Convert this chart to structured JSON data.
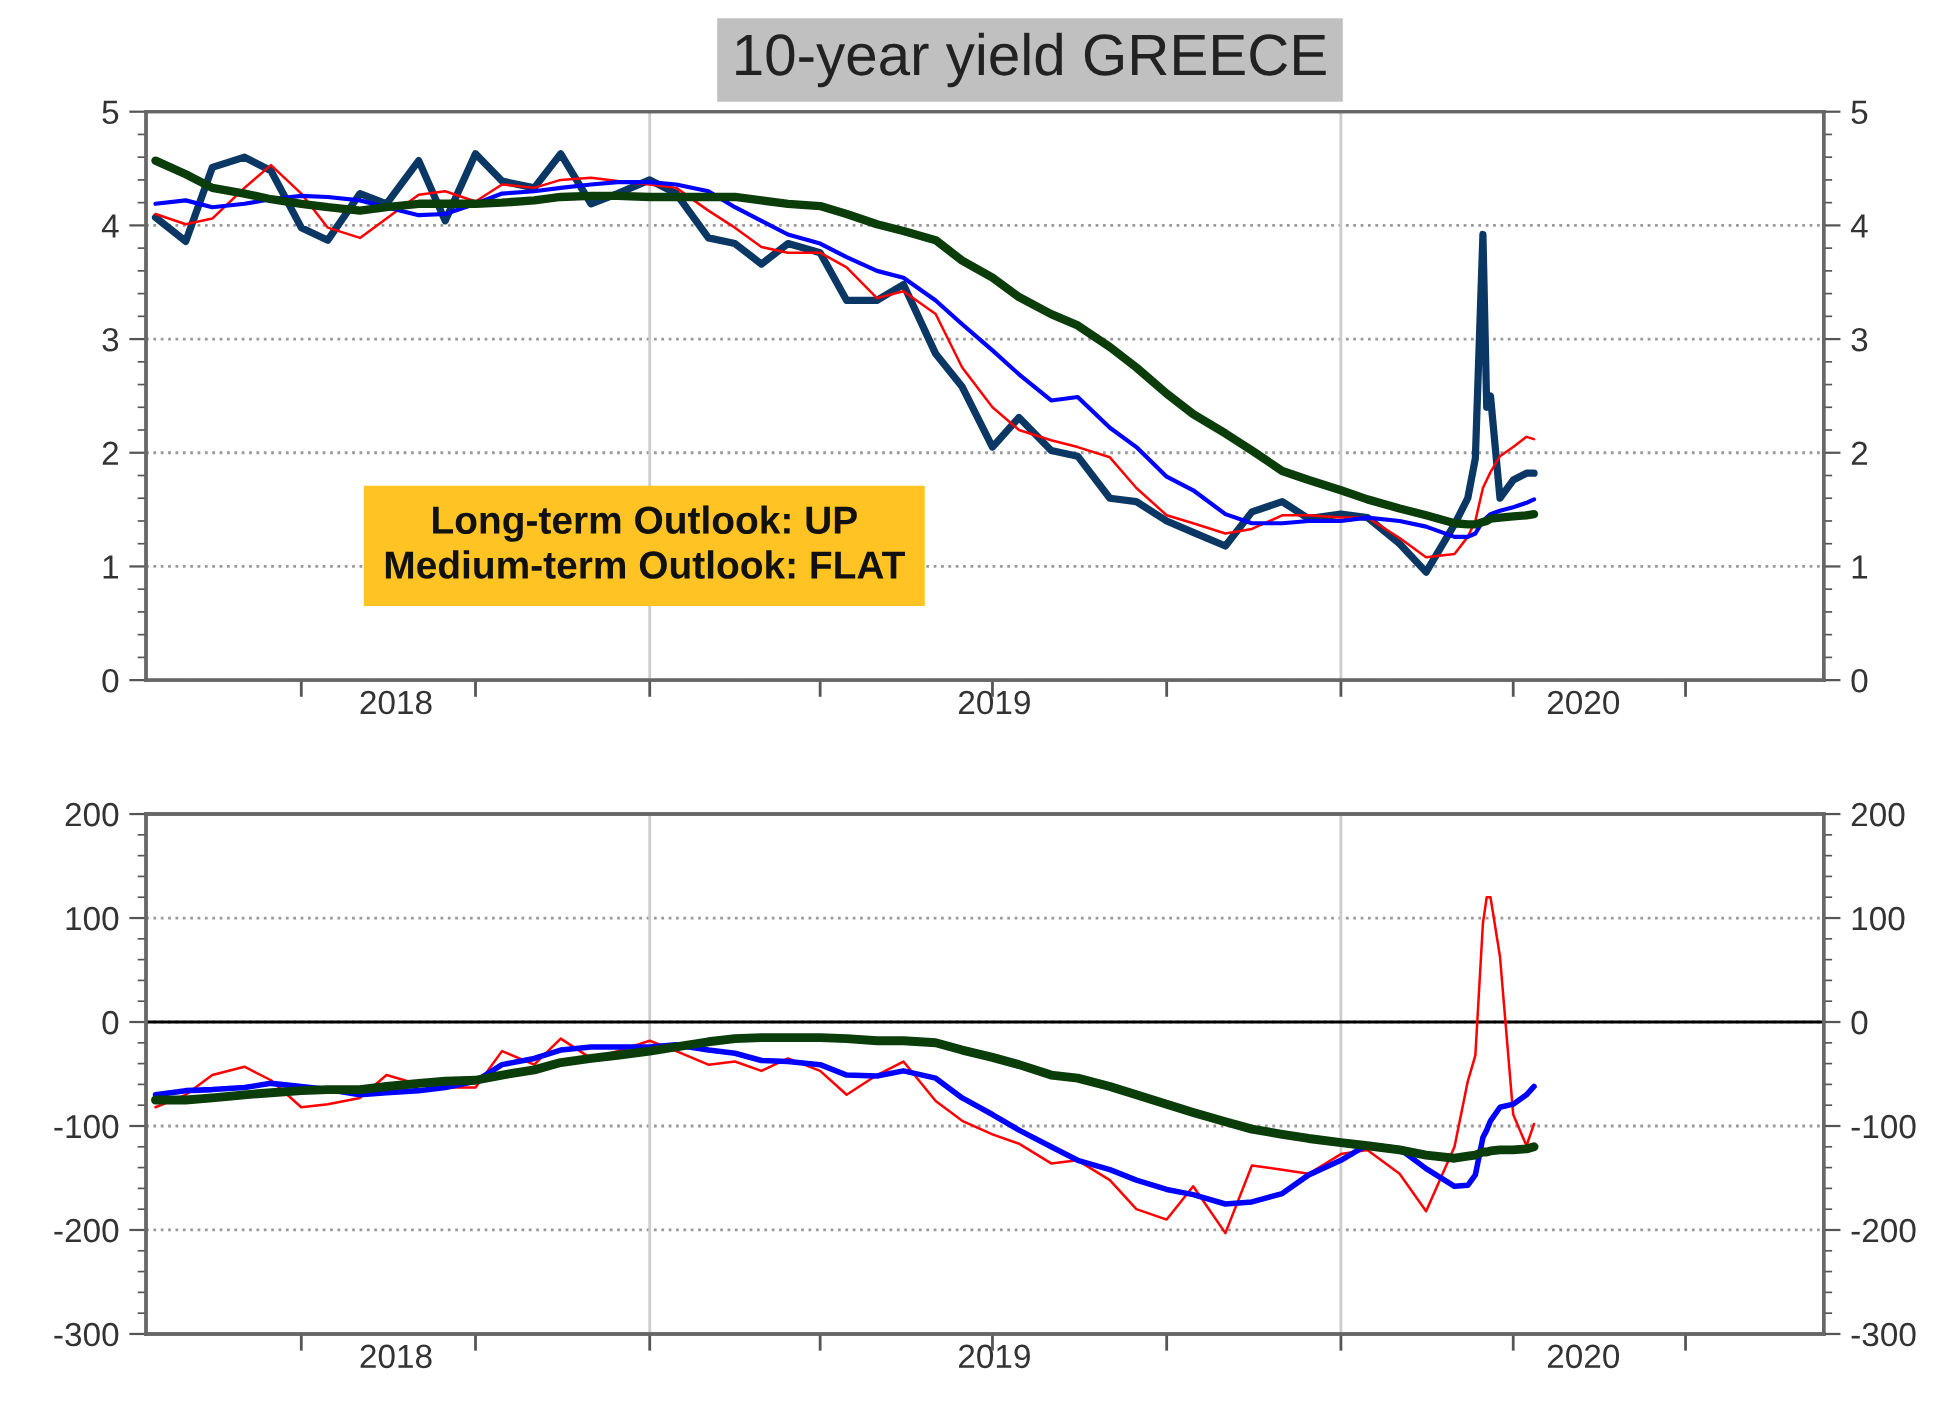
{
  "chart_data": [
    {
      "type": "line",
      "title": "10-year yield GREECE",
      "annotations": [
        "Long-term Outlook: UP\nMedium-term Outlook: FLAT"
      ],
      "x": [
        "2018-04-15",
        "2018-05-01",
        "2018-05-15",
        "2018-06-01",
        "2018-06-15",
        "2018-07-01",
        "2018-07-15",
        "2018-08-01",
        "2018-08-15",
        "2018-09-01",
        "2018-09-15",
        "2018-10-01",
        "2018-10-15",
        "2018-11-01",
        "2018-11-15",
        "2018-12-01",
        "2018-12-15",
        "2019-01-01",
        "2019-01-15",
        "2019-02-01",
        "2019-02-15",
        "2019-03-01",
        "2019-03-15",
        "2019-04-01",
        "2019-04-15",
        "2019-05-01",
        "2019-05-15",
        "2019-06-01",
        "2019-06-15",
        "2019-07-01",
        "2019-07-15",
        "2019-08-01",
        "2019-08-15",
        "2019-09-01",
        "2019-09-15",
        "2019-10-01",
        "2019-10-15",
        "2019-11-01",
        "2019-11-15",
        "2019-12-01",
        "2019-12-15",
        "2020-01-01",
        "2020-01-15",
        "2020-02-01",
        "2020-02-15",
        "2020-03-01",
        "2020-03-08",
        "2020-03-12",
        "2020-03-16",
        "2020-03-18",
        "2020-03-20",
        "2020-03-25",
        "2020-04-01",
        "2020-04-08",
        "2020-04-12"
      ],
      "series": [
        {
          "color": "#0b3765",
          "values": [
            4.07,
            3.86,
            4.51,
            4.6,
            4.48,
            3.98,
            3.87,
            4.28,
            4.19,
            4.57,
            4.04,
            4.63,
            4.39,
            4.33,
            4.63,
            4.19,
            4.28,
            4.4,
            4.28,
            3.89,
            3.84,
            3.66,
            3.84,
            3.76,
            3.34,
            3.34,
            3.48,
            2.87,
            2.58,
            2.05,
            2.31,
            2.02,
            1.97,
            1.6,
            1.57,
            1.4,
            1.3,
            1.18,
            1.48,
            1.57,
            1.42,
            1.46,
            1.43,
            1.2,
            0.95,
            1.37,
            1.6,
            1.95,
            3.92,
            2.4,
            2.5,
            1.6,
            1.76,
            1.82,
            1.82
          ]
        },
        {
          "color": "#ff0000",
          "values": [
            4.1,
            4.01,
            4.06,
            4.33,
            4.53,
            4.28,
            3.98,
            3.89,
            4.06,
            4.27,
            4.3,
            4.21,
            4.36,
            4.33,
            4.4,
            4.42,
            4.39,
            4.36,
            4.33,
            4.13,
            3.98,
            3.81,
            3.76,
            3.76,
            3.63,
            3.36,
            3.42,
            3.22,
            2.75,
            2.4,
            2.2,
            2.11,
            2.05,
            1.96,
            1.69,
            1.45,
            1.38,
            1.29,
            1.33,
            1.45,
            1.45,
            1.43,
            1.43,
            1.25,
            1.08,
            1.11,
            1.26,
            1.4,
            1.69,
            1.76,
            1.83,
            1.97,
            2.05,
            2.14,
            2.12
          ]
        },
        {
          "color": "#0000ff",
          "values": [
            4.19,
            4.22,
            4.16,
            4.19,
            4.23,
            4.26,
            4.25,
            4.22,
            4.16,
            4.09,
            4.1,
            4.19,
            4.28,
            4.3,
            4.33,
            4.36,
            4.38,
            4.38,
            4.36,
            4.3,
            4.16,
            4.04,
            3.92,
            3.84,
            3.72,
            3.6,
            3.54,
            3.34,
            3.13,
            2.9,
            2.69,
            2.46,
            2.49,
            2.22,
            2.05,
            1.79,
            1.67,
            1.46,
            1.38,
            1.38,
            1.4,
            1.4,
            1.43,
            1.4,
            1.35,
            1.26,
            1.26,
            1.29,
            1.4,
            1.43,
            1.46,
            1.49,
            1.52,
            1.56,
            1.59
          ]
        },
        {
          "color": "#0a3d0a",
          "values": [
            4.57,
            4.45,
            4.33,
            4.28,
            4.23,
            4.19,
            4.16,
            4.13,
            4.16,
            4.19,
            4.19,
            4.19,
            4.2,
            4.22,
            4.25,
            4.26,
            4.26,
            4.25,
            4.25,
            4.25,
            4.25,
            4.22,
            4.19,
            4.17,
            4.1,
            4.01,
            3.95,
            3.87,
            3.69,
            3.54,
            3.37,
            3.22,
            3.12,
            2.93,
            2.75,
            2.52,
            2.34,
            2.17,
            2.02,
            1.84,
            1.76,
            1.67,
            1.59,
            1.51,
            1.45,
            1.38,
            1.37,
            1.37,
            1.39,
            1.4,
            1.42,
            1.43,
            1.44,
            1.45,
            1.46
          ]
        }
      ],
      "xlim": [
        "2018-04-10",
        "2020-09-12"
      ],
      "xticks": [
        {
          "value": "2018-07-01",
          "label": null
        },
        {
          "value": "2018-08-20",
          "label": "2018"
        },
        {
          "value": "2018-10-01",
          "label": null
        },
        {
          "value": "2019-01-01",
          "label": null
        },
        {
          "value": "2019-04-01",
          "label": null
        },
        {
          "value": "2019-07-01",
          "label": null
        },
        {
          "value": "2019-07-02",
          "label": "2019"
        },
        {
          "value": "2019-10-01",
          "label": null
        },
        {
          "value": "2020-01-01",
          "label": null
        },
        {
          "value": "2020-04-01",
          "label": null
        },
        {
          "value": "2020-05-08",
          "label": "2020"
        },
        {
          "value": "2020-07-01",
          "label": null
        }
      ],
      "ylim": [
        0,
        5
      ],
      "yticks": [
        0,
        {
          "value": 0.2,
          "label": null
        },
        {
          "value": 0.4,
          "label": null
        },
        {
          "value": 0.6,
          "label": null
        },
        {
          "value": 0.8,
          "label": null
        },
        1,
        {
          "value": 1.2,
          "label": null
        },
        {
          "value": 1.4,
          "label": null
        },
        {
          "value": 1.6,
          "label": null
        },
        {
          "value": 1.8,
          "label": null
        },
        2,
        {
          "value": 2.2,
          "label": null
        },
        {
          "value": 2.4,
          "label": null
        },
        {
          "value": 2.6,
          "label": null
        },
        {
          "value": 2.8,
          "label": null
        },
        3,
        {
          "value": 3.2,
          "label": null
        },
        {
          "value": 3.4,
          "label": null
        },
        {
          "value": 3.6,
          "label": null
        },
        {
          "value": 3.8,
          "label": null
        },
        4,
        {
          "value": 4.2,
          "label": null
        },
        {
          "value": 4.4,
          "label": null
        },
        {
          "value": 4.6,
          "label": null
        },
        {
          "value": 4.8,
          "label": null
        },
        5
      ],
      "y2lim": [
        0,
        5
      ],
      "y2ticks": [
        0,
        {
          "value": 0.2,
          "label": null
        },
        {
          "value": 0.4,
          "label": null
        },
        {
          "value": 0.6,
          "label": null
        },
        {
          "value": 0.8,
          "label": null
        },
        1,
        {
          "value": 1.2,
          "label": null
        },
        {
          "value": 1.4,
          "label": null
        },
        {
          "value": 1.6,
          "label": null
        },
        {
          "value": 1.8,
          "label": null
        },
        2,
        {
          "value": 2.2,
          "label": null
        },
        {
          "value": 2.4,
          "label": null
        },
        {
          "value": 2.6,
          "label": null
        },
        {
          "value": 2.8,
          "label": null
        },
        3,
        {
          "value": 3.2,
          "label": null
        },
        {
          "value": 3.4,
          "label": null
        },
        {
          "value": 3.6,
          "label": null
        },
        {
          "value": 3.8,
          "label": null
        },
        4,
        {
          "value": 4.2,
          "label": null
        },
        {
          "value": 4.4,
          "label": null
        },
        {
          "value": 4.6,
          "label": null
        },
        {
          "value": 4.8,
          "label": null
        },
        5
      ],
      "ref_lines": [
        {
          "axis": "x",
          "value": "2019-01-01",
          "color": "#cccccc"
        },
        {
          "axis": "x",
          "value": "2020-01-01",
          "color": "#cccccc"
        }
      ],
      "grid": "y"
    },
    {
      "type": "line",
      "x": [
        "2018-04-15",
        "2018-05-01",
        "2018-05-15",
        "2018-06-01",
        "2018-06-15",
        "2018-07-01",
        "2018-07-15",
        "2018-08-01",
        "2018-08-15",
        "2018-09-01",
        "2018-09-15",
        "2018-10-01",
        "2018-10-15",
        "2018-11-01",
        "2018-11-15",
        "2018-12-01",
        "2018-12-15",
        "2019-01-01",
        "2019-01-15",
        "2019-02-01",
        "2019-02-15",
        "2019-03-01",
        "2019-03-15",
        "2019-04-01",
        "2019-04-15",
        "2019-05-01",
        "2019-05-15",
        "2019-06-01",
        "2019-06-15",
        "2019-07-01",
        "2019-07-15",
        "2019-08-01",
        "2019-08-15",
        "2019-09-01",
        "2019-09-15",
        "2019-10-01",
        "2019-10-15",
        "2019-11-01",
        "2019-11-15",
        "2019-12-01",
        "2019-12-15",
        "2020-01-01",
        "2020-01-15",
        "2020-02-01",
        "2020-02-15",
        "2020-03-01",
        "2020-03-08",
        "2020-03-12",
        "2020-03-16",
        "2020-03-18",
        "2020-03-20",
        "2020-03-25",
        "2020-04-01",
        "2020-04-08",
        "2020-04-12"
      ],
      "series": [
        {
          "color": "#ff0000",
          "values": [
            -82,
            -70,
            -51,
            -43,
            -56,
            -82,
            -79,
            -73,
            -51,
            -60,
            -63,
            -63,
            -28,
            -41,
            -16,
            -35,
            -28,
            -18,
            -28,
            -41,
            -38,
            -47,
            -35,
            -47,
            -70,
            -51,
            -38,
            -76,
            -95,
            -108,
            -117,
            -136,
            -133,
            -152,
            -180,
            -190,
            -158,
            -203,
            -138,
            -142,
            -146,
            -127,
            -123,
            -146,
            -182,
            -120,
            -57,
            -32,
            95,
            120,
            120,
            63,
            -89,
            -119,
            -98
          ]
        },
        {
          "color": "#0000ff",
          "values": [
            -70,
            -66,
            -65,
            -63,
            -59,
            -62,
            -65,
            -70,
            -68,
            -66,
            -63,
            -57,
            -41,
            -35,
            -27,
            -24,
            -24,
            -24,
            -22,
            -27,
            -30,
            -37,
            -38,
            -41,
            -51,
            -52,
            -47,
            -54,
            -73,
            -89,
            -104,
            -120,
            -133,
            -142,
            -152,
            -161,
            -166,
            -175,
            -173,
            -165,
            -147,
            -133,
            -118,
            -122,
            -141,
            -158,
            -157,
            -147,
            -111,
            -104,
            -95,
            -82,
            -79,
            -70,
            -62
          ]
        },
        {
          "color": "#0a3d0a",
          "values": [
            -75,
            -75,
            -73,
            -70,
            -68,
            -66,
            -65,
            -65,
            -62,
            -59,
            -57,
            -56,
            -51,
            -46,
            -39,
            -35,
            -32,
            -28,
            -24,
            -19,
            -16,
            -15,
            -15,
            -15,
            -16,
            -18,
            -18,
            -20,
            -27,
            -34,
            -41,
            -51,
            -54,
            -62,
            -70,
            -79,
            -87,
            -96,
            -103,
            -108,
            -112,
            -116,
            -119,
            -123,
            -128,
            -131,
            -129,
            -128,
            -125,
            -125,
            -124,
            -123,
            -123,
            -122,
            -120
          ]
        }
      ],
      "xlim": [
        "2018-04-10",
        "2020-09-12"
      ],
      "xticks": [
        {
          "value": "2018-07-01",
          "label": null
        },
        {
          "value": "2018-08-20",
          "label": "2018"
        },
        {
          "value": "2018-10-01",
          "label": null
        },
        {
          "value": "2019-01-01",
          "label": null
        },
        {
          "value": "2019-04-01",
          "label": null
        },
        {
          "value": "2019-07-01",
          "label": null
        },
        {
          "value": "2019-07-02",
          "label": "2019"
        },
        {
          "value": "2019-10-01",
          "label": null
        },
        {
          "value": "2020-01-01",
          "label": null
        },
        {
          "value": "2020-04-01",
          "label": null
        },
        {
          "value": "2020-05-08",
          "label": "2020"
        },
        {
          "value": "2020-07-01",
          "label": null
        }
      ],
      "ylim": [
        -300,
        200
      ],
      "yticks": [
        -300,
        {
          "value": -280,
          "label": null
        },
        {
          "value": -260,
          "label": null
        },
        {
          "value": -240,
          "label": null
        },
        {
          "value": -220,
          "label": null
        },
        -200,
        {
          "value": -180,
          "label": null
        },
        {
          "value": -160,
          "label": null
        },
        {
          "value": -140,
          "label": null
        },
        {
          "value": -120,
          "label": null
        },
        -100,
        {
          "value": -80,
          "label": null
        },
        {
          "value": -60,
          "label": null
        },
        {
          "value": -40,
          "label": null
        },
        {
          "value": -20,
          "label": null
        },
        0,
        {
          "value": 20,
          "label": null
        },
        {
          "value": 40,
          "label": null
        },
        {
          "value": 60,
          "label": null
        },
        {
          "value": 80,
          "label": null
        },
        100,
        {
          "value": 120,
          "label": null
        },
        {
          "value": 140,
          "label": null
        },
        {
          "value": 160,
          "label": null
        },
        {
          "value": 180,
          "label": null
        },
        200
      ],
      "y2lim": [
        -300,
        200
      ],
      "y2ticks": [
        -300,
        {
          "value": -280,
          "label": null
        },
        {
          "value": -260,
          "label": null
        },
        {
          "value": -240,
          "label": null
        },
        {
          "value": -220,
          "label": null
        },
        -200,
        {
          "value": -180,
          "label": null
        },
        {
          "value": -160,
          "label": null
        },
        {
          "value": -140,
          "label": null
        },
        {
          "value": -120,
          "label": null
        },
        -100,
        {
          "value": -80,
          "label": null
        },
        {
          "value": -60,
          "label": null
        },
        {
          "value": -40,
          "label": null
        },
        {
          "value": -20,
          "label": null
        },
        0,
        {
          "value": 20,
          "label": null
        },
        {
          "value": 40,
          "label": null
        },
        {
          "value": 60,
          "label": null
        },
        {
          "value": 80,
          "label": null
        },
        100,
        {
          "value": 120,
          "label": null
        },
        {
          "value": 140,
          "label": null
        },
        {
          "value": 160,
          "label": null
        },
        {
          "value": 180,
          "label": null
        },
        200
      ],
      "ref_lines": [
        {
          "axis": "x",
          "value": "2019-01-01",
          "color": "#cccccc"
        },
        {
          "axis": "x",
          "value": "2020-01-01",
          "color": "#cccccc"
        },
        {
          "axis": "y",
          "value": 0,
          "color": "#000000"
        }
      ],
      "grid": "y"
    }
  ]
}
